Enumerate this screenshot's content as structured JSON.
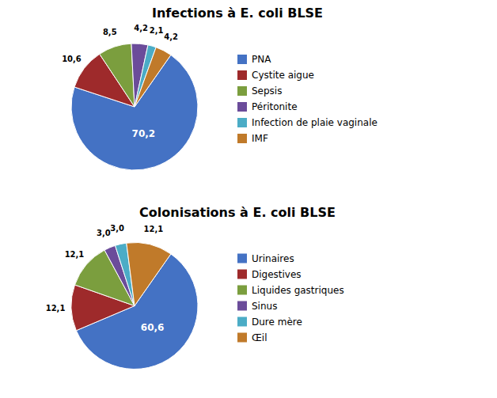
{
  "chart_data": [
    {
      "type": "pie",
      "title": "Infections à E. coli BLSE",
      "categories": [
        "PNA",
        "Cystite aigue",
        "Sepsis",
        "Péritonite",
        "Infection de plaie vaginale",
        "IMF"
      ],
      "values": [
        70.2,
        10.6,
        8.5,
        4.2,
        2.1,
        4.2
      ],
      "value_labels": [
        "70,2",
        "10,6",
        "8,5",
        "4,2",
        "2,1",
        "4,2"
      ],
      "colors": [
        "#4472C4",
        "#9E2A2B",
        "#7B9E3E",
        "#6B4C9A",
        "#4BACC6",
        "#C07A2A"
      ],
      "data_labels": true,
      "legend": "right"
    },
    {
      "type": "pie",
      "title": "Colonisations à E. coli BLSE",
      "categories": [
        "Urinaires",
        "Digestives",
        "Liquides gastriques",
        "Sinus",
        "Dure mère",
        "Œil"
      ],
      "values": [
        60.6,
        12.1,
        12.1,
        3.0,
        3.0,
        12.1
      ],
      "value_labels": [
        "60,6",
        "12,1",
        "12,1",
        "3,0",
        "3,0",
        "12,1"
      ],
      "colors": [
        "#4472C4",
        "#9E2A2B",
        "#7B9E3E",
        "#6B4C9A",
        "#4BACC6",
        "#C07A2A"
      ],
      "data_labels": true,
      "legend": "right"
    }
  ]
}
